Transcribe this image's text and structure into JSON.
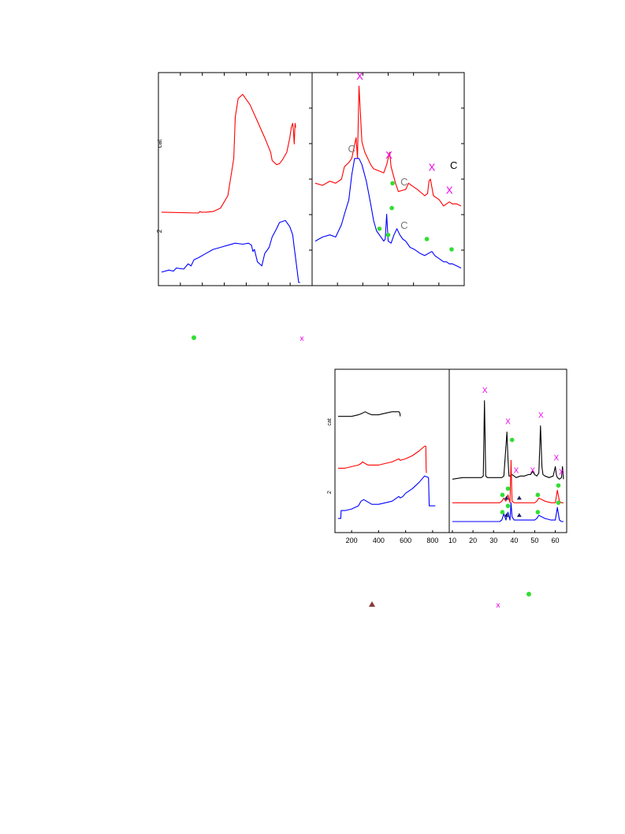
{
  "chart_data": [
    {
      "type": "line",
      "panel": "top-left",
      "ylabel": "cat",
      "side_label": "2",
      "xlim": [
        0,
        100
      ],
      "ylim": [
        0,
        100
      ],
      "series": [
        {
          "color": "#ff0000",
          "x": [
            0,
            25,
            26,
            27,
            30,
            35,
            40,
            45,
            49,
            50,
            52,
            55,
            60,
            65,
            70,
            74,
            75,
            78,
            80,
            82,
            85,
            87,
            88,
            89,
            89.5,
            90,
            90.6,
            91
          ],
          "y": [
            34,
            33.6,
            34.3,
            34,
            34,
            34.3,
            36,
            42,
            60,
            80,
            89,
            91,
            86,
            78,
            70,
            63,
            59,
            57,
            57.5,
            59.3,
            63,
            70,
            75,
            77,
            73,
            67,
            77,
            75
          ]
        },
        {
          "color": "#0000ff",
          "x": [
            0,
            5,
            8,
            10,
            15,
            18,
            20,
            22,
            25,
            30,
            35,
            40,
            45,
            50,
            55,
            59,
            61,
            62,
            63,
            65,
            68,
            70,
            73,
            75,
            78,
            80,
            84,
            87,
            89,
            90,
            92,
            93,
            94
          ],
          "y": [
            5,
            6,
            5.5,
            7,
            6.5,
            9,
            8,
            11,
            12,
            14,
            16,
            17,
            18,
            19,
            18.5,
            19,
            18,
            15,
            16,
            10,
            8,
            14,
            17,
            22,
            26,
            29,
            30,
            27,
            23,
            17,
            6,
            0,
            0
          ]
        }
      ]
    },
    {
      "type": "line",
      "panel": "top-right",
      "xlim": [
        0,
        100
      ],
      "ylim": [
        0,
        100
      ],
      "series": [
        {
          "color": "#ff0000",
          "x": [
            0,
            5,
            10,
            14,
            18,
            20,
            23,
            25,
            28,
            29,
            30,
            32,
            34,
            38,
            40,
            47,
            49,
            51,
            52,
            55,
            57,
            62,
            64,
            66,
            70,
            75,
            77,
            78,
            79,
            81,
            85,
            88,
            90,
            92,
            94,
            97,
            100
          ],
          "y": [
            48,
            47,
            49,
            48,
            50,
            56,
            58,
            60,
            70,
            60,
            95,
            68,
            63,
            57,
            55,
            53,
            57,
            63,
            56,
            48,
            44,
            45,
            48,
            47,
            45,
            42,
            43,
            49,
            50,
            42,
            40,
            37,
            38,
            39,
            38,
            38,
            37
          ]
        },
        {
          "color": "#0000ff",
          "x": [
            0,
            5,
            10,
            14,
            18,
            20,
            23,
            25,
            27,
            30,
            32,
            35,
            38,
            40,
            42,
            45,
            47,
            48,
            49,
            50,
            52,
            54,
            56,
            58,
            60,
            62,
            65,
            68,
            70,
            72,
            75,
            80,
            82,
            84,
            86,
            88,
            90,
            92,
            94,
            97,
            100
          ],
          "y": [
            20,
            22,
            23,
            22,
            28,
            33,
            40,
            52,
            60,
            60,
            57,
            49,
            38,
            30,
            25,
            22,
            20,
            21,
            33,
            20,
            19,
            23,
            26,
            23,
            21,
            20,
            17,
            16,
            15,
            14,
            13,
            15,
            13,
            12,
            11,
            10,
            10,
            9,
            9,
            8,
            7
          ]
        }
      ],
      "annotations": [
        {
          "text": "X",
          "color": "#ee00ee",
          "x": 30.5,
          "y": 98
        },
        {
          "text": "X",
          "color": "#ee00ee",
          "x": 50.5,
          "y": 60
        },
        {
          "text": "X",
          "color": "#ee00ee",
          "x": 80,
          "y": 54
        },
        {
          "text": "X",
          "color": "#ee00ee",
          "x": 92,
          "y": 43
        },
        {
          "text": "C",
          "color": "#777777",
          "x": 25,
          "y": 63
        },
        {
          "text": "C",
          "color": "#777777",
          "x": 61,
          "y": 47
        },
        {
          "text": "C",
          "color": "#777777",
          "x": 61,
          "y": 26
        },
        {
          "text": "C",
          "color": "#000000",
          "x": 95,
          "y": 55
        }
      ],
      "markers": [
        {
          "shape": "circle",
          "color": "#33dd33",
          "x": 53,
          "y": 48
        },
        {
          "shape": "circle",
          "color": "#33dd33",
          "x": 44,
          "y": 26
        },
        {
          "shape": "circle",
          "color": "#33dd33",
          "x": 50,
          "y": 23
        },
        {
          "shape": "circle",
          "color": "#33dd33",
          "x": 52.5,
          "y": 36
        },
        {
          "shape": "circle",
          "color": "#33dd33",
          "x": 76.5,
          "y": 21
        },
        {
          "shape": "circle",
          "color": "#33dd33",
          "x": 93.5,
          "y": 16
        }
      ]
    },
    {
      "type": "line",
      "panel": "bottom-left",
      "ylabel": "cat",
      "side_label": "2",
      "xlim": [
        100,
        900
      ],
      "ylim": [
        0,
        100
      ],
      "x_ticks": [
        200,
        400,
        600,
        800
      ],
      "series": [
        {
          "color": "#000000",
          "x": [
            100,
            150,
            200,
            250,
            280,
            300,
            320,
            350,
            400,
            450,
            500,
            550,
            558,
            560
          ],
          "y": [
            72,
            72,
            72,
            73,
            74,
            75,
            74,
            73,
            73,
            74,
            75,
            75,
            74,
            72
          ]
        },
        {
          "color": "#ff0000",
          "x": [
            100,
            150,
            200,
            250,
            270,
            280,
            300,
            320,
            350,
            400,
            450,
            500,
            550,
            560,
            600,
            650,
            700,
            740,
            750,
            752,
            755
          ],
          "y": [
            39,
            39,
            40,
            41,
            42,
            43,
            42,
            41,
            41,
            41,
            42,
            43,
            45,
            44,
            45,
            47,
            50,
            53,
            53,
            38,
            36
          ]
        },
        {
          "color": "#0000ff",
          "x": [
            100,
            120,
            122,
            150,
            200,
            250,
            270,
            290,
            310,
            350,
            400,
            450,
            500,
            550,
            560,
            580,
            600,
            650,
            700,
            740,
            770,
            775,
            800,
            820
          ],
          "y": [
            7,
            7,
            12,
            12,
            13,
            15,
            18,
            19,
            18,
            16,
            16,
            17,
            18,
            21,
            20,
            21,
            23,
            26,
            30,
            34,
            33,
            15,
            15,
            15
          ]
        }
      ]
    },
    {
      "type": "line",
      "panel": "bottom-right",
      "xlim": [
        10,
        64
      ],
      "ylim": [
        0,
        100
      ],
      "x_ticks": [
        10,
        20,
        30,
        40,
        50,
        60
      ],
      "series": [
        {
          "color": "#000000",
          "x": [
            10,
            15,
            20,
            24,
            25,
            25.6,
            26.2,
            27,
            30,
            34,
            35,
            36.5,
            37,
            37.5,
            38,
            39,
            40,
            41,
            43,
            45,
            47,
            48,
            49,
            50,
            51,
            52,
            52.8,
            53.5,
            54,
            55,
            57,
            59,
            60,
            60.5,
            61,
            62,
            63,
            63.5,
            64
          ],
          "y": [
            32,
            33,
            33,
            33,
            34,
            82,
            34,
            33,
            33,
            33,
            34,
            62,
            45,
            34,
            34,
            35,
            34,
            33,
            34,
            34,
            35,
            35,
            37,
            35,
            34,
            36,
            66,
            40,
            35,
            34,
            33,
            34,
            40,
            35,
            33,
            32,
            33,
            40,
            32
          ]
        },
        {
          "color": "#ff0000",
          "x": [
            10,
            20,
            30,
            33,
            34,
            35,
            36,
            37,
            38,
            38.5,
            39,
            40,
            42,
            45,
            50,
            51,
            52,
            55,
            58,
            60,
            61,
            62,
            63,
            64
          ],
          "y": [
            17,
            17,
            17,
            17,
            18,
            20,
            18,
            22,
            17,
            44,
            18,
            17,
            17,
            17,
            17,
            18,
            20,
            18,
            17,
            17,
            25,
            18,
            17,
            17
          ]
        },
        {
          "color": "#0000ff",
          "x": [
            10,
            20,
            30,
            33,
            34,
            35,
            36,
            37,
            38,
            38.5,
            39,
            40,
            42,
            45,
            50,
            51,
            52,
            55,
            58,
            60,
            61,
            62,
            63,
            64
          ],
          "y": [
            5,
            5,
            5,
            5,
            6,
            10,
            6,
            11,
            6,
            17,
            8,
            6,
            6,
            6,
            6,
            7,
            9,
            7,
            6,
            6,
            14,
            6,
            5,
            5
          ]
        }
      ],
      "annotations": [
        {
          "text": "X",
          "color": "#ee00ee",
          "x": 25.8,
          "y": 87
        },
        {
          "text": "X",
          "color": "#ee00ee",
          "x": 37,
          "y": 67
        },
        {
          "text": "X",
          "color": "#ee00ee",
          "x": 53,
          "y": 71
        },
        {
          "text": "X",
          "color": "#ee00ee",
          "x": 60.5,
          "y": 44
        },
        {
          "text": "X",
          "color": "#ee00ee",
          "x": 63,
          "y": 35
        },
        {
          "text": "X",
          "color": "#ee00ee",
          "x": 41,
          "y": 36
        },
        {
          "text": "X",
          "color": "#ee00ee",
          "x": 49,
          "y": 36
        }
      ],
      "markers": [
        {
          "shape": "circle",
          "color": "#33dd33",
          "x": 39,
          "y": 57
        },
        {
          "shape": "circle",
          "color": "#33dd33",
          "x": 34.3,
          "y": 22
        },
        {
          "shape": "circle",
          "color": "#33dd33",
          "x": 37,
          "y": 26
        },
        {
          "shape": "circle",
          "color": "#33dd33",
          "x": 51.5,
          "y": 22
        },
        {
          "shape": "circle",
          "color": "#33dd33",
          "x": 61.5,
          "y": 28
        },
        {
          "shape": "circle",
          "color": "#33dd33",
          "x": 34.3,
          "y": 11
        },
        {
          "shape": "circle",
          "color": "#33dd33",
          "x": 37,
          "y": 15
        },
        {
          "shape": "circle",
          "color": "#33dd33",
          "x": 51.5,
          "y": 11
        },
        {
          "shape": "circle",
          "color": "#33dd33",
          "x": 61.5,
          "y": 17
        },
        {
          "shape": "triangle",
          "color": "#222266",
          "x": 36.3,
          "y": 20
        },
        {
          "shape": "triangle",
          "color": "#222266",
          "x": 42.5,
          "y": 20
        },
        {
          "shape": "triangle",
          "color": "#222266",
          "x": 36.3,
          "y": 9
        },
        {
          "shape": "triangle",
          "color": "#222266",
          "x": 42.5,
          "y": 9
        }
      ]
    }
  ],
  "legend_marks": [
    {
      "shape": "circle",
      "color": "#33dd33"
    },
    {
      "text": "x",
      "color": "#ee00ee"
    },
    {
      "shape": "circle",
      "color": "#33dd33"
    },
    {
      "shape": "triangle",
      "color": "#8b3a3a"
    },
    {
      "text": "x",
      "color": "#ee00ee"
    }
  ]
}
